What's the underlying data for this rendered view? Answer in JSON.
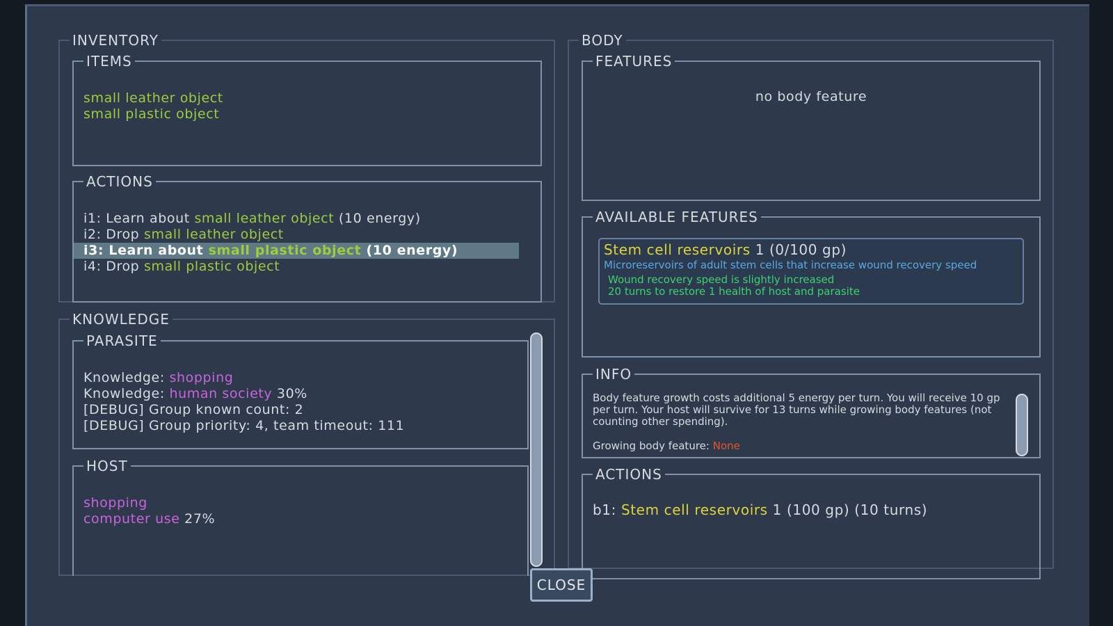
{
  "inventory": {
    "title": "INVENTORY",
    "items": {
      "title": "ITEMS",
      "entries": [
        "small leather object",
        "small plastic object"
      ]
    },
    "actions": {
      "title": "ACTIONS",
      "entries": [
        {
          "key": "i1:",
          "verb": "Learn about",
          "object": "small leather object",
          "cost": "(10 energy)"
        },
        {
          "key": "i2:",
          "verb": "Drop",
          "object": "small leather object"
        },
        {
          "key": "i3:",
          "verb": "Learn about",
          "object": "small plastic object",
          "cost": "(10 energy)",
          "selected": true
        },
        {
          "key": "i4:",
          "verb": "Drop",
          "object": "small plastic object"
        }
      ]
    }
  },
  "knowledge": {
    "title": "KNOWLEDGE",
    "parasite": {
      "title": "PARASITE",
      "lines": [
        {
          "label": "Knowledge:",
          "skill": "shopping"
        },
        {
          "label": "Knowledge:",
          "skill": "human society",
          "level": "30%"
        },
        {
          "text": "[DEBUG] Group known count: 2"
        },
        {
          "text": "[DEBUG] Group priority: 4, team timeout: 111"
        }
      ]
    },
    "host": {
      "title": "HOST",
      "lines": [
        {
          "skill": "shopping"
        },
        {
          "skill": "computer use",
          "level": "27%"
        }
      ]
    }
  },
  "body": {
    "title": "BODY",
    "features": {
      "title": "FEATURES",
      "empty": "no body feature"
    },
    "available": {
      "title": "AVAILABLE FEATURES",
      "cards": [
        {
          "name": "Stem cell reservoirs",
          "level": "1",
          "progress": "(0/100 gp)",
          "description": "Microreservoirs of adult stem cells that increase wound recovery speed",
          "effects": [
            "Wound recovery speed is slightly increased",
            "20 turns to restore 1 health of host and parasite"
          ]
        }
      ]
    },
    "info": {
      "title": "INFO",
      "text": "Body feature growth costs additional 5 energy per turn. You will receive 10 gp per turn. Your host will survive for 13 turns while growing body features (not counting other spending).",
      "growing_label": "Growing body feature:",
      "growing_value": "None"
    },
    "actions": {
      "title": "ACTIONS",
      "entries": [
        {
          "key": "b1:",
          "name": "Stem cell reservoirs",
          "level": "1",
          "cost": "(100 gp)",
          "time": "(10 turns)"
        }
      ]
    }
  },
  "close": "CLOSE"
}
